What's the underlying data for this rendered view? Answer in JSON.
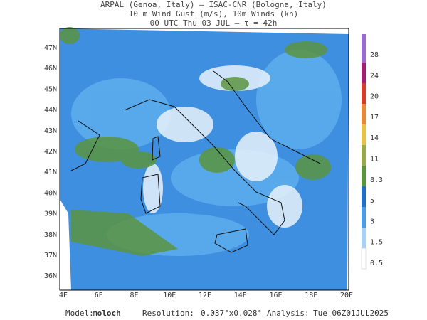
{
  "header": {
    "lines": [
      "ARPAL (Genoa, Italy)  —  ISAC-CNR (Bologna, Italy)",
      "10 m Wind Gust (m/s), 10m Winds (kn)",
      "00 UTC Thu 03 JUL  –  τ = 42h"
    ]
  },
  "map": {
    "lat_labels": [
      "47N",
      "46N",
      "45N",
      "44N",
      "43N",
      "42N",
      "41N",
      "40N",
      "39N",
      "38N",
      "37N",
      "36N"
    ],
    "lon_labels": [
      "4E",
      "6E",
      "8E",
      "10E",
      "12E",
      "14E",
      "16E",
      "18E",
      "20E"
    ]
  },
  "colorbar": {
    "labels": [
      "28",
      "24",
      "20",
      "17",
      "14",
      "11",
      "8.3",
      "5",
      "3",
      "1.5",
      "0.5"
    ]
  },
  "footer": {
    "model_label": "Model:",
    "model": "moloch",
    "resolution_label": "Resolution:",
    "resolution": "0.037°x0.028°",
    "analysis_label": "Analysis:",
    "analysis": "Tue 06Z01JUL2025"
  }
}
